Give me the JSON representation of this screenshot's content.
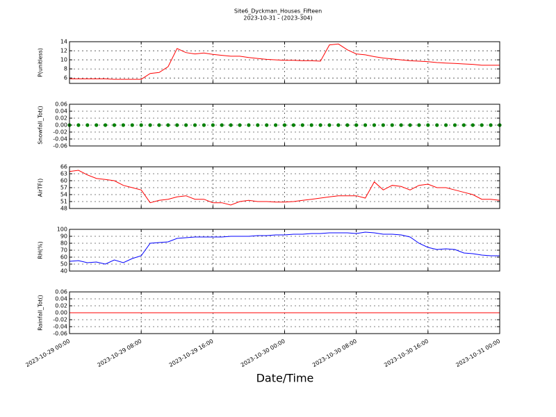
{
  "chart_data": {
    "type": "line",
    "title": "Site6_Dyckman_Houses_Fifteen",
    "subtitle": "2023-10-31 - (2023-304)",
    "xlabel": "Date/Time",
    "xlim": [
      "2023-10-29 00:00",
      "2023-10-31 00:00"
    ],
    "xticks": [
      "2023-10-29 00:00",
      "2023-10-29 08:00",
      "2023-10-29 16:00",
      "2023-10-30 00:00",
      "2023-10-30 08:00",
      "2023-10-30 16:00",
      "2023-10-31 00:00"
    ],
    "grid": true,
    "x": [
      "2023-10-29 00:00",
      "2023-10-29 01:00",
      "2023-10-29 02:00",
      "2023-10-29 03:00",
      "2023-10-29 04:00",
      "2023-10-29 05:00",
      "2023-10-29 06:00",
      "2023-10-29 07:00",
      "2023-10-29 08:00",
      "2023-10-29 09:00",
      "2023-10-29 10:00",
      "2023-10-29 11:00",
      "2023-10-29 12:00",
      "2023-10-29 13:00",
      "2023-10-29 14:00",
      "2023-10-29 15:00",
      "2023-10-29 16:00",
      "2023-10-29 17:00",
      "2023-10-29 18:00",
      "2023-10-29 19:00",
      "2023-10-29 20:00",
      "2023-10-29 21:00",
      "2023-10-29 22:00",
      "2023-10-29 23:00",
      "2023-10-30 00:00",
      "2023-10-30 01:00",
      "2023-10-30 02:00",
      "2023-10-30 03:00",
      "2023-10-30 04:00",
      "2023-10-30 05:00",
      "2023-10-30 06:00",
      "2023-10-30 07:00",
      "2023-10-30 08:00",
      "2023-10-30 09:00",
      "2023-10-30 10:00",
      "2023-10-30 11:00",
      "2023-10-30 12:00",
      "2023-10-30 13:00",
      "2023-10-30 14:00",
      "2023-10-30 15:00",
      "2023-10-30 16:00",
      "2023-10-30 17:00",
      "2023-10-30 18:00",
      "2023-10-30 19:00",
      "2023-10-30 20:00",
      "2023-10-30 21:00",
      "2023-10-30 22:00",
      "2023-10-30 23:00",
      "2023-10-31 00:00"
    ],
    "panels": [
      {
        "ylabel": "P(unitless)",
        "ylim": [
          4.8,
          14
        ],
        "yticks": [
          6,
          8,
          10,
          12,
          14
        ],
        "series": [
          {
            "name": "P(unitless)",
            "color": "#ff0000",
            "marker": "line",
            "values": [
              5.8,
              5.8,
              5.8,
              5.8,
              5.8,
              5.7,
              5.7,
              5.7,
              5.7,
              7.0,
              7.2,
              8.5,
              12.5,
              11.6,
              11.3,
              11.5,
              11.2,
              11.0,
              10.8,
              10.8,
              10.5,
              10.3,
              10.1,
              10.0,
              9.9,
              9.9,
              9.8,
              9.8,
              9.7,
              13.3,
              13.5,
              12.2,
              11.3,
              11.1,
              10.7,
              10.4,
              10.2,
              10.0,
              9.8,
              9.7,
              9.6,
              9.4,
              9.3,
              9.2,
              9.1,
              9.0,
              8.8,
              8.8,
              8.8
            ]
          }
        ]
      },
      {
        "ylabel": "Snowfall_Tot()",
        "ylim": [
          -0.06,
          0.06
        ],
        "yticks": [
          -0.06,
          -0.04,
          -0.02,
          {
            "value": 0,
            "label": "0.00"
          },
          0.02,
          0.04,
          0.06
        ],
        "series": [
          {
            "name": "Snowfall_Tot()",
            "color": "#008000",
            "marker": "dot",
            "values": [
              0,
              0,
              0,
              0,
              0,
              0,
              0,
              0,
              0,
              0,
              0,
              0,
              0,
              0,
              0,
              0,
              0,
              0,
              0,
              0,
              0,
              0,
              0,
              0,
              0,
              0,
              0,
              0,
              0,
              0,
              0,
              0,
              0,
              0,
              0,
              0,
              0,
              0,
              0,
              0,
              0,
              0,
              0,
              0,
              0,
              0,
              0,
              0,
              0
            ]
          }
        ]
      },
      {
        "ylabel": "AirTF()",
        "ylim": [
          48,
          66
        ],
        "yticks": [
          48,
          51,
          54,
          57,
          60,
          63,
          66
        ],
        "series": [
          {
            "name": "AirTF()",
            "color": "#ff0000",
            "marker": "line",
            "values": [
              64,
              64.5,
              62.5,
              61,
              60.5,
              60,
              58,
              57,
              56,
              50.5,
              51.5,
              52,
              53,
              53.5,
              52,
              52,
              50.5,
              50.5,
              49.5,
              51,
              51.5,
              51,
              51,
              50.8,
              50.8,
              51,
              51.5,
              52,
              52.5,
              53,
              53.5,
              53.5,
              53.5,
              52.5,
              59.5,
              56,
              58,
              57.5,
              56,
              58,
              58.5,
              57,
              57,
              56,
              55,
              54,
              52,
              52,
              51.5
            ]
          }
        ]
      },
      {
        "ylabel": "RH(%)",
        "ylim": [
          40,
          100
        ],
        "yticks": [
          40,
          50,
          60,
          70,
          80,
          90,
          100
        ],
        "series": [
          {
            "name": "RH(%)",
            "color": "#0000ff",
            "marker": "line",
            "values": [
              54,
              55,
              52,
              53,
              50,
              56,
              52,
              58,
              62,
              80,
              81,
              82,
              87,
              88,
              89,
              89,
              89,
              89,
              90,
              90,
              90,
              91,
              91,
              92,
              92,
              93,
              93,
              94,
              94,
              95,
              95,
              95,
              94,
              96,
              95,
              93,
              93,
              92,
              89,
              80,
              74,
              71,
              72,
              71,
              66,
              65,
              63,
              62,
              62
            ]
          }
        ]
      },
      {
        "ylabel": "Rainfall_Tot()",
        "ylim": [
          -0.06,
          0.06
        ],
        "yticks": [
          -0.06,
          -0.04,
          -0.02,
          {
            "value": 0,
            "label": "0.00"
          },
          0.02,
          0.04,
          0.06
        ],
        "series": [
          {
            "name": "Rainfall_Tot()",
            "color": "#ff0000",
            "marker": "line",
            "values": [
              0,
              0,
              0,
              0,
              0,
              0,
              0,
              0,
              0,
              0,
              0,
              0,
              0,
              0,
              0,
              0,
              0,
              0,
              0,
              0,
              0,
              0,
              0,
              0,
              0,
              0,
              0,
              0,
              0,
              0,
              0,
              0,
              0,
              0,
              0,
              0,
              0,
              0,
              0,
              0,
              0,
              0,
              0,
              0,
              0,
              0,
              0,
              0,
              0
            ]
          }
        ]
      }
    ]
  }
}
